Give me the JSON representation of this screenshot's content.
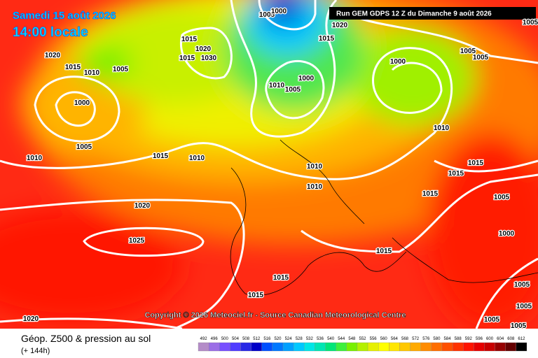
{
  "header": {
    "date": "Samedi 15 août 2026",
    "time": "14:00 locale"
  },
  "run": "Run GEM GDPS 12 Z du Dimanche 9 août 2026",
  "copyright": "Copyright © 2026 Meteociel.fr - Source Canadian Meteorological Centre",
  "footer": {
    "title": "Géop. Z500 & pression au sol",
    "lead": "(+ 144h)"
  },
  "legend": {
    "values": [
      492,
      496,
      500,
      504,
      508,
      512,
      516,
      520,
      524,
      528,
      532,
      536,
      540,
      544,
      548,
      552,
      556,
      560,
      564,
      568,
      572,
      576,
      580,
      584,
      588,
      592,
      596,
      600,
      604,
      608,
      612
    ]
  },
  "isobars": [
    "1015",
    "1020",
    "1015",
    "1030",
    "1005",
    "1000",
    "1020",
    "1015",
    "1000",
    "1010",
    "1005",
    "1000",
    "1005",
    "1005",
    "1005",
    "1010",
    "1015",
    "1010",
    "1010",
    "1010",
    "1015",
    "1015",
    "1015",
    "1005",
    "1000",
    "1020",
    "1025",
    "1015",
    "1015",
    "1015",
    "1005",
    "1005",
    "1005",
    "1005",
    "1020",
    "1020",
    "1015",
    "1010",
    "1005",
    "1000",
    "1005",
    "1010"
  ]
}
